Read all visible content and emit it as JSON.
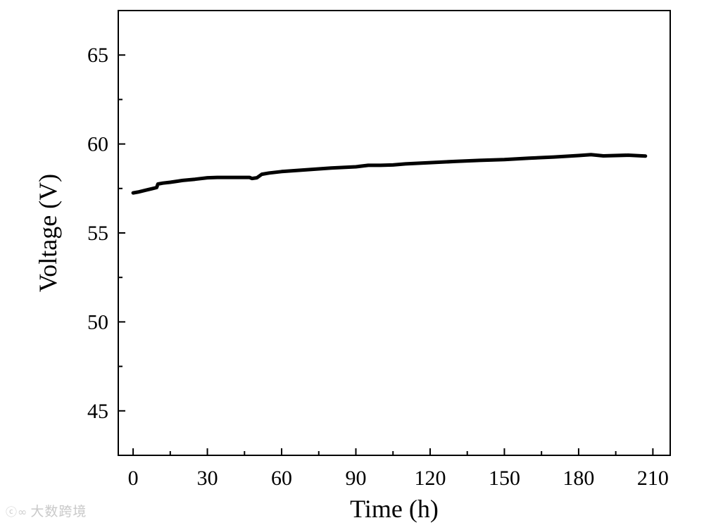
{
  "chart_data": {
    "type": "line",
    "xlabel": "Time (h)",
    "ylabel": "Voltage (V)",
    "xlim": [
      -6,
      217
    ],
    "ylim": [
      42.5,
      67.5
    ],
    "xticks": [
      0,
      30,
      60,
      90,
      120,
      150,
      180,
      210
    ],
    "yticks": [
      45,
      50,
      55,
      60,
      65
    ],
    "x_minor_step": 15,
    "y_minor_step": 2.5,
    "grid": false,
    "series": [
      {
        "color": "#000000",
        "x": [
          0,
          2,
          5,
          8,
          9.5,
          10,
          12,
          15,
          20,
          25,
          30,
          34,
          34.5,
          40,
          47,
          48,
          50,
          52,
          55,
          60,
          70,
          80,
          90,
          95,
          100,
          105,
          110,
          120,
          130,
          140,
          150,
          160,
          170,
          180,
          185,
          190,
          200,
          207
        ],
        "y": [
          57.25,
          57.3,
          57.4,
          57.5,
          57.55,
          57.75,
          57.8,
          57.85,
          57.95,
          58.02,
          58.1,
          58.12,
          58.12,
          58.12,
          58.12,
          58.06,
          58.1,
          58.3,
          58.37,
          58.45,
          58.55,
          58.65,
          58.72,
          58.8,
          58.8,
          58.82,
          58.88,
          58.95,
          59.02,
          59.08,
          59.12,
          59.2,
          59.27,
          59.35,
          59.4,
          59.33,
          59.37,
          59.32
        ]
      }
    ]
  },
  "watermark": {
    "logo": "ⓒ∞",
    "text": "大数跨境"
  }
}
